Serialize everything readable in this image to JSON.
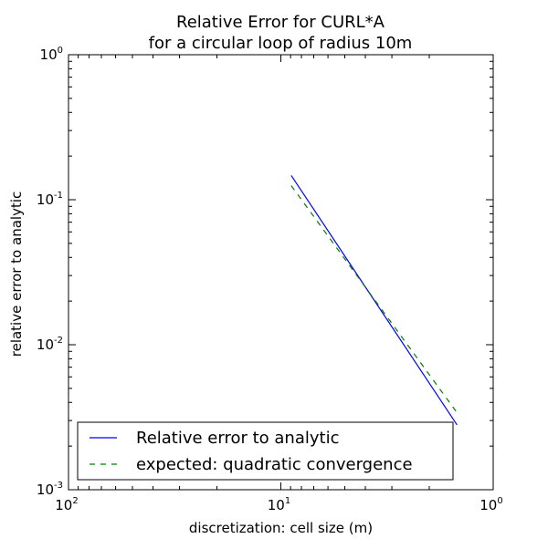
{
  "chart_data": {
    "type": "line",
    "title_lines": [
      "Relative Error for CURL*A",
      "for a circular loop of radius 10m"
    ],
    "xlabel": "discretization: cell size (m)",
    "ylabel": "relative error to analytic",
    "xscale": "log",
    "yscale": "log",
    "xlim": [
      100,
      1
    ],
    "ylim": [
      0.001,
      1
    ],
    "x_ticks": [
      {
        "value": 100,
        "base": "10",
        "exp": "2"
      },
      {
        "value": 10,
        "base": "10",
        "exp": "1"
      },
      {
        "value": 1,
        "base": "10",
        "exp": "0"
      }
    ],
    "y_ticks": [
      {
        "value": 1,
        "base": "10",
        "exp": "0"
      },
      {
        "value": 0.1,
        "base": "10",
        "exp": "-1"
      },
      {
        "value": 0.01,
        "base": "10",
        "exp": "-2"
      },
      {
        "value": 0.001,
        "base": "10",
        "exp": "-3"
      }
    ],
    "series": [
      {
        "name": "Relative error to analytic",
        "color": "#0000ff",
        "style": "solid",
        "x": [
          8.93,
          1.48
        ],
        "y": [
          0.147,
          0.0028
        ]
      },
      {
        "name": "expected: quadratic convergence",
        "color": "#008000",
        "style": "dashed",
        "x": [
          8.93,
          1.48
        ],
        "y": [
          0.125,
          0.0034
        ]
      }
    ],
    "legend": "lower-right",
    "grid": false
  }
}
